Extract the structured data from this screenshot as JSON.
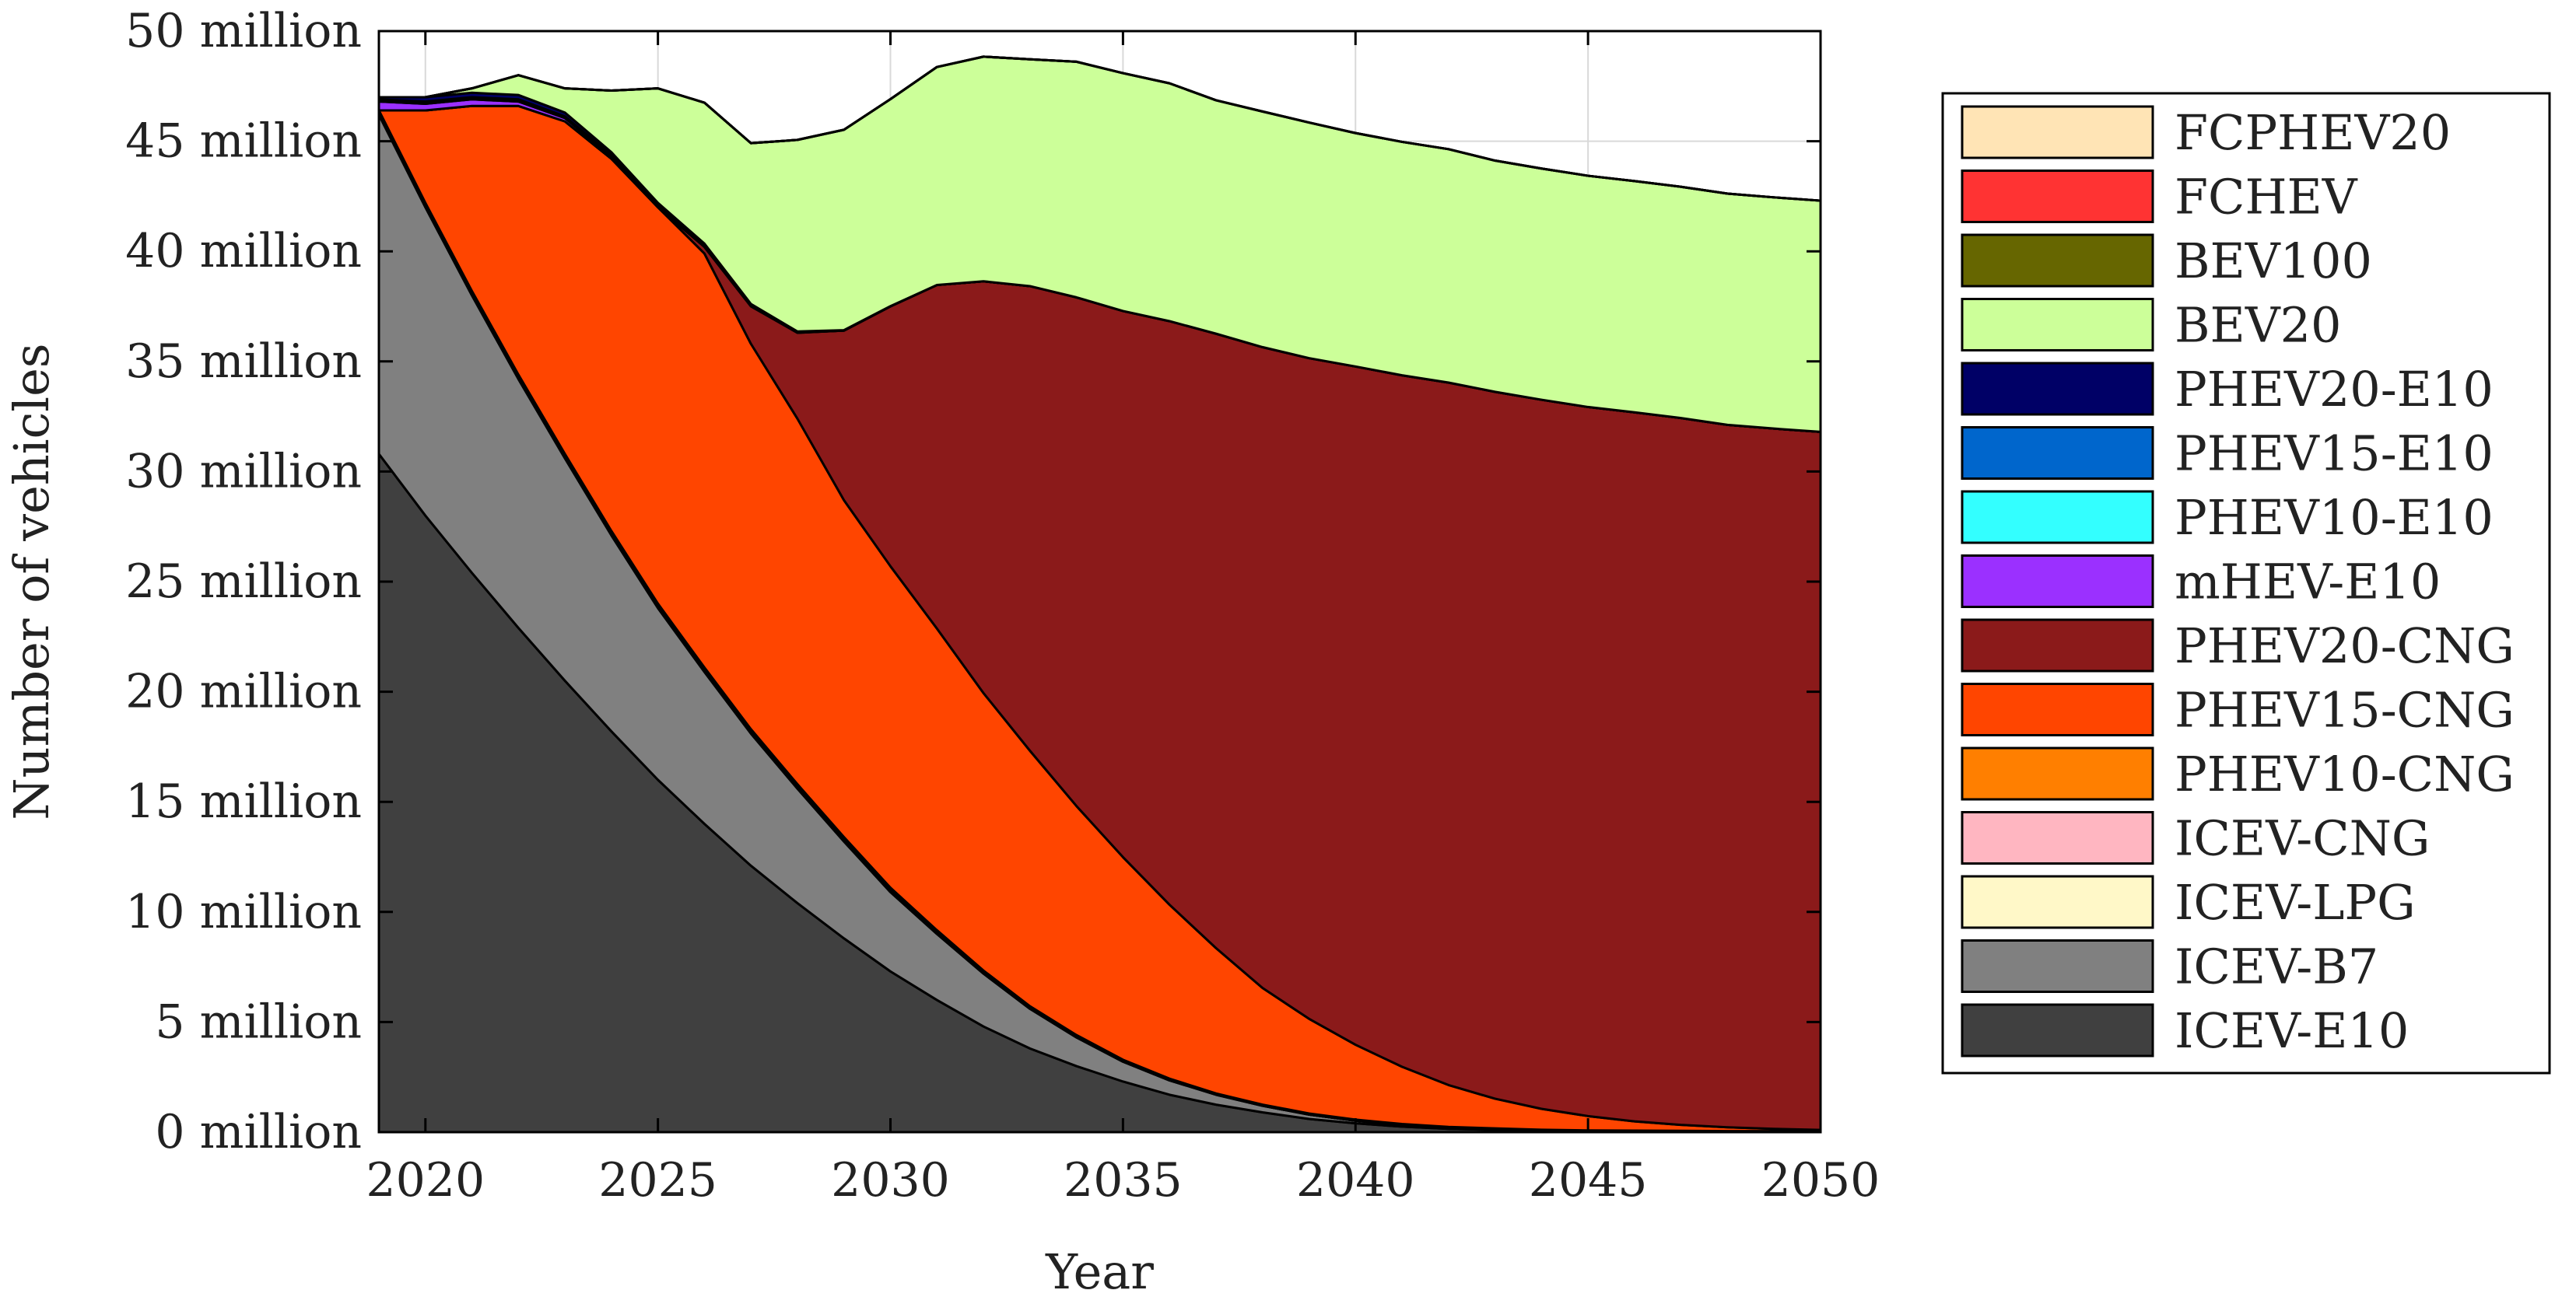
{
  "chart_data": {
    "type": "area",
    "stacked": true,
    "title": "",
    "xlabel": "Year",
    "ylabel": "Number of vehicles",
    "xlim": [
      2019,
      2050
    ],
    "ylim": [
      0,
      50
    ],
    "y_unit": "million",
    "x_ticks": [
      2020,
      2025,
      2030,
      2035,
      2040,
      2045,
      2050
    ],
    "x_tick_labels": [
      "2020",
      "2025",
      "2030",
      "2035",
      "2040",
      "2045",
      "2050"
    ],
    "y_ticks": [
      0,
      5,
      10,
      15,
      20,
      25,
      30,
      35,
      40,
      45,
      50
    ],
    "y_tick_labels": [
      "0 million",
      "5 million",
      "10 million",
      "15 million",
      "20 million",
      "25 million",
      "30 million",
      "35 million",
      "40 million",
      "45 million",
      "50 million"
    ],
    "grid": true,
    "legend_position": "right",
    "x": [
      2019,
      2020,
      2021,
      2022,
      2023,
      2024,
      2025,
      2026,
      2027,
      2028,
      2029,
      2030,
      2031,
      2032,
      2033,
      2034,
      2035,
      2036,
      2037,
      2038,
      2039,
      2040,
      2041,
      2042,
      2043,
      2044,
      2045,
      2046,
      2047,
      2048,
      2049,
      2050
    ],
    "series": [
      {
        "name": "ICEV-E10",
        "color": "#404040",
        "values": [
          30.8,
          28.0,
          25.4,
          22.9,
          20.5,
          18.2,
          16.0,
          14.0,
          12.1,
          10.4,
          8.8,
          7.3,
          6.0,
          4.8,
          3.8,
          3.0,
          2.3,
          1.7,
          1.25,
          0.9,
          0.6,
          0.4,
          0.25,
          0.15,
          0.1,
          0.05,
          0.03,
          0.02,
          0.01,
          0.0,
          0.0,
          0.0
        ]
      },
      {
        "name": "ICEV-B7",
        "color": "#808080",
        "values": [
          15.4,
          14.0,
          12.6,
          11.3,
          10.1,
          8.9,
          7.8,
          6.9,
          6.0,
          5.2,
          4.4,
          3.6,
          3.0,
          2.4,
          1.8,
          1.3,
          0.9,
          0.65,
          0.45,
          0.3,
          0.2,
          0.12,
          0.07,
          0.04,
          0.02,
          0.01,
          0.0,
          0.0,
          0.0,
          0.0,
          0.0,
          0.0
        ]
      },
      {
        "name": "ICEV-LPG",
        "color": "#FFF8C8",
        "values": [
          0.1,
          0.1,
          0.1,
          0.1,
          0.1,
          0.1,
          0.1,
          0.1,
          0.1,
          0.1,
          0.1,
          0.1,
          0.08,
          0.06,
          0.05,
          0.04,
          0.03,
          0.02,
          0.01,
          0.0,
          0.0,
          0.0,
          0.0,
          0.0,
          0.0,
          0.0,
          0.0,
          0.0,
          0.0,
          0.0,
          0.0,
          0.0
        ]
      },
      {
        "name": "ICEV-CNG",
        "color": "#FFB6C1",
        "values": [
          0.05,
          0.05,
          0.05,
          0.05,
          0.05,
          0.05,
          0.05,
          0.05,
          0.05,
          0.05,
          0.05,
          0.05,
          0.04,
          0.03,
          0.02,
          0.02,
          0.01,
          0.01,
          0.0,
          0.0,
          0.0,
          0.0,
          0.0,
          0.0,
          0.0,
          0.0,
          0.0,
          0.0,
          0.0,
          0.0,
          0.0,
          0.0
        ]
      },
      {
        "name": "PHEV10-CNG",
        "color": "#FF7F00",
        "values": [
          0.05,
          0.05,
          0.05,
          0.05,
          0.05,
          0.05,
          0.05,
          0.05,
          0.05,
          0.05,
          0.05,
          0.05,
          0.05,
          0.05,
          0.05,
          0.05,
          0.05,
          0.05,
          0.05,
          0.05,
          0.05,
          0.05,
          0.05,
          0.05,
          0.05,
          0.05,
          0.05,
          0.05,
          0.05,
          0.05,
          0.05,
          0.05
        ]
      },
      {
        "name": "PHEV15-CNG",
        "color": "#FF4500",
        "values": [
          0.0,
          4.2,
          8.4,
          12.2,
          15.1,
          16.9,
          18.0,
          18.8,
          17.5,
          16.6,
          15.3,
          14.6,
          13.7,
          12.6,
          11.6,
          10.4,
          9.2,
          7.9,
          6.6,
          5.3,
          4.3,
          3.4,
          2.6,
          1.9,
          1.35,
          0.95,
          0.65,
          0.42,
          0.27,
          0.17,
          0.1,
          0.05
        ]
      },
      {
        "name": "PHEV20-CNG",
        "color": "#8B1A1A",
        "values": [
          0.0,
          0.0,
          0.0,
          0.0,
          0.0,
          0.0,
          0.0,
          0.3,
          1.7,
          3.9,
          7.7,
          11.8,
          15.6,
          18.7,
          21.1,
          23.1,
          24.8,
          26.5,
          27.9,
          29.1,
          30.0,
          30.8,
          31.4,
          31.9,
          32.1,
          32.2,
          32.2,
          32.2,
          32.1,
          31.9,
          31.8,
          31.7
        ]
      },
      {
        "name": "mHEV-E10",
        "color": "#9B30FF",
        "values": [
          0.4,
          0.3,
          0.3,
          0.2,
          0.15,
          0.1,
          0.05,
          0.03,
          0.02,
          0.01,
          0.0,
          0.0,
          0.0,
          0.0,
          0.0,
          0.0,
          0.0,
          0.0,
          0.0,
          0.0,
          0.0,
          0.0,
          0.0,
          0.0,
          0.0,
          0.0,
          0.0,
          0.0,
          0.0,
          0.0,
          0.0,
          0.0
        ]
      },
      {
        "name": "PHEV10-E10",
        "color": "#33FFFF",
        "values": [
          0.02,
          0.02,
          0.02,
          0.02,
          0.02,
          0.02,
          0.01,
          0.01,
          0.01,
          0.0,
          0.0,
          0.0,
          0.0,
          0.0,
          0.0,
          0.0,
          0.0,
          0.0,
          0.0,
          0.0,
          0.0,
          0.0,
          0.0,
          0.0,
          0.0,
          0.0,
          0.0,
          0.0,
          0.0,
          0.0,
          0.0,
          0.0
        ]
      },
      {
        "name": "PHEV15-E10",
        "color": "#0066CC",
        "values": [
          0.08,
          0.08,
          0.08,
          0.08,
          0.06,
          0.05,
          0.04,
          0.03,
          0.02,
          0.01,
          0.0,
          0.0,
          0.0,
          0.0,
          0.0,
          0.0,
          0.0,
          0.0,
          0.0,
          0.0,
          0.0,
          0.0,
          0.0,
          0.0,
          0.0,
          0.0,
          0.0,
          0.0,
          0.0,
          0.0,
          0.0,
          0.0
        ]
      },
      {
        "name": "PHEV20-E10",
        "color": "#000066",
        "values": [
          0.1,
          0.2,
          0.2,
          0.2,
          0.17,
          0.13,
          0.1,
          0.08,
          0.06,
          0.04,
          0.02,
          0.01,
          0.0,
          0.0,
          0.0,
          0.0,
          0.0,
          0.0,
          0.0,
          0.0,
          0.0,
          0.0,
          0.0,
          0.0,
          0.0,
          0.0,
          0.0,
          0.0,
          0.0,
          0.0,
          0.0,
          0.0
        ]
      },
      {
        "name": "BEV20",
        "color": "#CCFF99",
        "values": [
          0.0,
          0.0,
          0.2,
          0.9,
          1.1,
          2.8,
          5.2,
          6.4,
          7.3,
          8.7,
          9.1,
          9.4,
          9.9,
          10.2,
          10.3,
          10.7,
          10.8,
          10.8,
          10.6,
          10.7,
          10.7,
          10.6,
          10.6,
          10.6,
          10.5,
          10.5,
          10.5,
          10.5,
          10.5,
          10.5,
          10.5,
          10.5
        ]
      },
      {
        "name": "BEV100",
        "color": "#666600",
        "values": [
          0.0,
          0.0,
          0.0,
          0.0,
          0.0,
          0.0,
          0.0,
          0.0,
          0.0,
          0.0,
          0.0,
          0.0,
          0.0,
          0.0,
          0.0,
          0.0,
          0.0,
          0.0,
          0.0,
          0.0,
          0.0,
          0.0,
          0.0,
          0.0,
          0.0,
          0.0,
          0.0,
          0.0,
          0.0,
          0.0,
          0.0,
          0.0
        ]
      },
      {
        "name": "FCHEV",
        "color": "#FF3333",
        "values": [
          0.0,
          0.0,
          0.0,
          0.0,
          0.0,
          0.0,
          0.0,
          0.0,
          0.0,
          0.0,
          0.0,
          0.0,
          0.0,
          0.0,
          0.0,
          0.0,
          0.0,
          0.0,
          0.0,
          0.0,
          0.0,
          0.0,
          0.0,
          0.0,
          0.0,
          0.0,
          0.0,
          0.0,
          0.0,
          0.0,
          0.0,
          0.0
        ]
      },
      {
        "name": "FCPHEV20",
        "color": "#FFE4B5",
        "values": [
          0.0,
          0.0,
          0.0,
          0.0,
          0.0,
          0.0,
          0.0,
          0.0,
          0.0,
          0.0,
          0.0,
          0.0,
          0.0,
          0.0,
          0.0,
          0.0,
          0.0,
          0.0,
          0.0,
          0.0,
          0.0,
          0.0,
          0.0,
          0.0,
          0.0,
          0.0,
          0.0,
          0.0,
          0.0,
          0.0,
          0.0,
          0.0
        ]
      }
    ]
  }
}
